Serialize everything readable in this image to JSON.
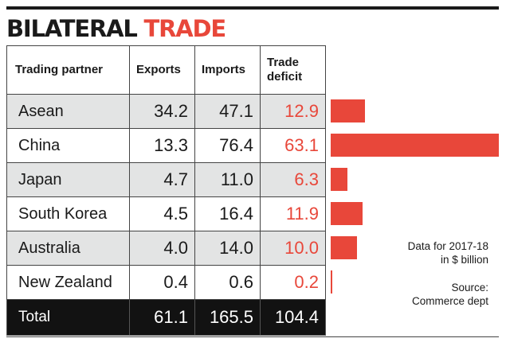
{
  "title": {
    "part1": "BILATERAL",
    "part2": "TRADE"
  },
  "colors": {
    "accent": "#e8473a",
    "dark": "#121212",
    "row_shade": "#e3e4e4"
  },
  "headers": {
    "partner": "Trading partner",
    "exports": "Exports",
    "imports": "Imports",
    "deficit_line1": "Trade",
    "deficit_line2": "deficit"
  },
  "rows": [
    {
      "partner": "Asean",
      "exports": "34.2",
      "imports": "47.1",
      "deficit": "12.9"
    },
    {
      "partner": "China",
      "exports": "13.3",
      "imports": "76.4",
      "deficit": "63.1"
    },
    {
      "partner": "Japan",
      "exports": "4.7",
      "imports": "11.0",
      "deficit": "6.3"
    },
    {
      "partner": "South Korea",
      "exports": "4.5",
      "imports": "16.4",
      "deficit": "11.9"
    },
    {
      "partner": "Australia",
      "exports": "4.0",
      "imports": "14.0",
      "deficit": "10.0"
    },
    {
      "partner": "New Zealand",
      "exports": "0.4",
      "imports": "0.6",
      "deficit": "0.2"
    }
  ],
  "total": {
    "label": "Total",
    "exports": "61.1",
    "imports": "165.5",
    "deficit": "104.4"
  },
  "notes": {
    "data_line1": "Data for 2017-18",
    "data_line2": "in $ billion",
    "source_line1": "Source:",
    "source_line2": "Commerce dept"
  },
  "chart_data": {
    "type": "bar",
    "orientation": "horizontal",
    "categories": [
      "Asean",
      "China",
      "Japan",
      "South Korea",
      "Australia",
      "New Zealand"
    ],
    "series": [
      {
        "name": "Trade deficit",
        "values": [
          12.9,
          63.1,
          6.3,
          11.9,
          10.0,
          0.2
        ]
      }
    ],
    "table_columns": [
      "Trading partner",
      "Exports",
      "Imports",
      "Trade deficit"
    ],
    "exports": [
      34.2,
      13.3,
      4.7,
      4.5,
      4.0,
      0.4
    ],
    "imports": [
      47.1,
      76.4,
      11.0,
      16.4,
      14.0,
      0.6
    ],
    "totals": {
      "exports": 61.1,
      "imports": 165.5,
      "deficit": 104.4
    },
    "xlim": [
      0,
      63.1
    ],
    "grid": false,
    "bar_color": "#e8473a"
  }
}
